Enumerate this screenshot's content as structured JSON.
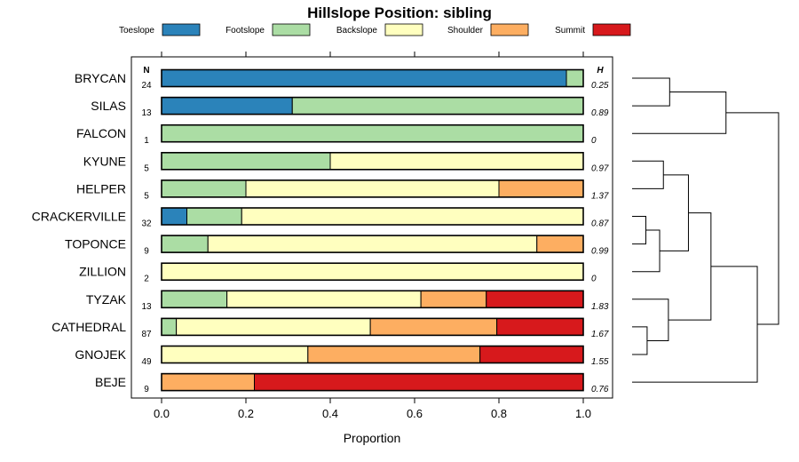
{
  "chart_data": {
    "type": "bar",
    "orientation": "horizontal",
    "stacked": true,
    "title": "Hillslope Position: sibling",
    "xlabel": "Proportion",
    "ylabel": "",
    "xlim": [
      0,
      1
    ],
    "x_ticks": [
      "0.0",
      "0.2",
      "0.4",
      "0.6",
      "0.8",
      "1.0"
    ],
    "n_header": "N",
    "h_header": "H",
    "legend": {
      "position": "top",
      "items": [
        {
          "name": "Toeslope",
          "color": "#2b83ba"
        },
        {
          "name": "Footslope",
          "color": "#abdda4"
        },
        {
          "name": "Backslope",
          "color": "#ffffbf"
        },
        {
          "name": "Shoulder",
          "color": "#fdae61"
        },
        {
          "name": "Summit",
          "color": "#d7191c"
        }
      ]
    },
    "categories": [
      "BRYCAN",
      "SILAS",
      "FALCON",
      "KYUNE",
      "HELPER",
      "CRACKERVILLE",
      "TOPONCE",
      "ZILLION",
      "TYZAK",
      "CATHEDRAL",
      "GNOJEK",
      "BEJE"
    ],
    "n": [
      "24",
      "13",
      "1",
      "5",
      "5",
      "32",
      "9",
      "2",
      "13",
      "87",
      "49",
      "9"
    ],
    "h": [
      "0.25",
      "0.89",
      "0",
      "0.97",
      "1.37",
      "0.87",
      "0.99",
      "0",
      "1.83",
      "1.67",
      "1.55",
      "0.76"
    ],
    "series": [
      {
        "name": "Toeslope",
        "values": [
          0.96,
          0.31,
          0,
          0,
          0,
          0.06,
          0,
          0,
          0,
          0,
          0,
          0
        ]
      },
      {
        "name": "Footslope",
        "values": [
          0.04,
          0.69,
          1.0,
          0.4,
          0.2,
          0.13,
          0.11,
          0,
          0.155,
          0.035,
          0,
          0
        ]
      },
      {
        "name": "Backslope",
        "values": [
          0,
          0,
          0,
          0.6,
          0.6,
          0.81,
          0.78,
          1.0,
          0.46,
          0.46,
          0.347,
          0
        ]
      },
      {
        "name": "Shoulder",
        "values": [
          0,
          0,
          0,
          0,
          0.2,
          0,
          0.11,
          0,
          0.155,
          0.3,
          0.408,
          0.22
        ]
      },
      {
        "name": "Summit",
        "values": [
          0,
          0,
          0,
          0,
          0,
          0,
          0,
          0,
          0.23,
          0.205,
          0.245,
          0.78
        ]
      }
    ],
    "dendrogram": {
      "merges": [
        {
          "a": 9,
          "b": 10,
          "height": 0.12
        },
        {
          "a": 5,
          "b": 6,
          "height": 0.11
        },
        {
          "a": "m2",
          "b": 7,
          "height": 0.22
        },
        {
          "a": 3,
          "b": 4,
          "height": 0.25
        },
        {
          "a": 8,
          "b": "m1",
          "height": 0.29
        },
        {
          "a": 0,
          "b": 1,
          "height": 0.3
        },
        {
          "a": "m4",
          "b": "m3",
          "height": 0.45
        },
        {
          "a": "m6",
          "b": 2,
          "height": 0.75
        },
        {
          "a": "m7",
          "b": "m5",
          "height": 0.63
        },
        {
          "a": "m9",
          "b": 11,
          "height": 1.0
        },
        {
          "a": "m8",
          "b": "m10",
          "height": 1.17
        }
      ]
    }
  }
}
